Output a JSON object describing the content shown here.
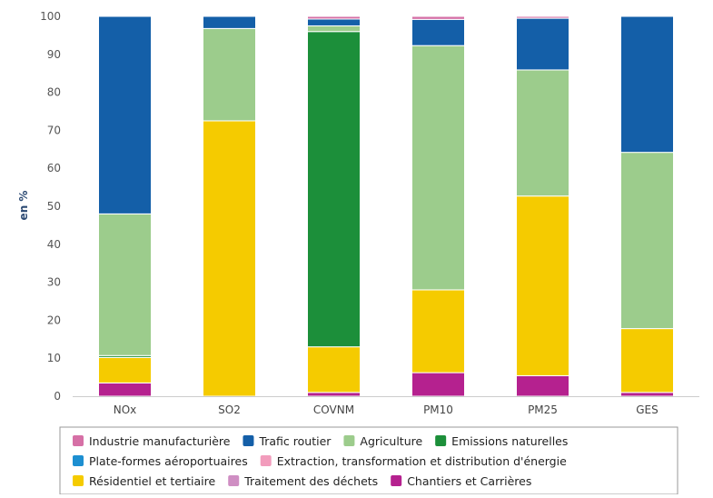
{
  "chart_data": {
    "type": "bar",
    "stacked": true,
    "ylabel": "en %",
    "ylim": [
      0,
      100
    ],
    "yticks": [
      0,
      10,
      20,
      30,
      40,
      50,
      60,
      70,
      80,
      90,
      100
    ],
    "grid": false,
    "legend_position": "bottom",
    "categories": [
      "NOx",
      "SO2",
      "COVNM",
      "PM10",
      "PM25",
      "GES"
    ],
    "series": [
      {
        "name": "Chantiers et Carrières",
        "color": "#b5218f",
        "values": [
          3.5,
          0,
          1,
          6.2,
          5.4,
          1
        ]
      },
      {
        "name": "Traitement des déchets",
        "color": "#cf8ec3",
        "values": [
          0,
          0,
          0,
          0,
          0,
          0
        ]
      },
      {
        "name": "Résidentiel et tertiaire",
        "color": "#f5cb00",
        "values": [
          6.7,
          72.5,
          12,
          21.8,
          47.3,
          16.8
        ]
      },
      {
        "name": "Extraction, transformation et distribution d'énergie",
        "color": "#f29cbc",
        "values": [
          0,
          0,
          0,
          0,
          0,
          0
        ]
      },
      {
        "name": "Plate-formes aéroportuaires",
        "color": "#1d8fd1",
        "values": [
          0,
          0,
          0,
          0,
          0,
          0
        ]
      },
      {
        "name": "Emissions naturelles",
        "color": "#1c8f3a",
        "values": [
          0.5,
          0,
          83,
          0,
          0,
          0
        ]
      },
      {
        "name": "Agriculture",
        "color": "#9ccc8c",
        "values": [
          37.3,
          24.3,
          1.5,
          64.3,
          33.2,
          46.4
        ]
      },
      {
        "name": "Trafic routier",
        "color": "#145fa8",
        "values": [
          52,
          3.2,
          1.8,
          6.9,
          13.6,
          35.8
        ]
      },
      {
        "name": "Industrie manufacturière",
        "color": "#d670a6",
        "values": [
          0,
          0,
          0.7,
          0.8,
          0.5,
          0
        ]
      }
    ],
    "legend_items": [
      {
        "name": "Industrie manufacturière",
        "color": "#d670a6"
      },
      {
        "name": "Trafic routier",
        "color": "#145fa8"
      },
      {
        "name": "Agriculture",
        "color": "#9ccc8c"
      },
      {
        "name": "Emissions naturelles",
        "color": "#1c8f3a"
      },
      {
        "name": "Plate-formes aéroportuaires",
        "color": "#1d8fd1"
      },
      {
        "name": "Extraction, transformation et distribution d'énergie",
        "color": "#f29cbc"
      },
      {
        "name": "Résidentiel et tertiaire",
        "color": "#f5cb00"
      },
      {
        "name": "Traitement des déchets",
        "color": "#cf8ec3"
      },
      {
        "name": "Chantiers et Carrières",
        "color": "#b5218f"
      }
    ]
  }
}
